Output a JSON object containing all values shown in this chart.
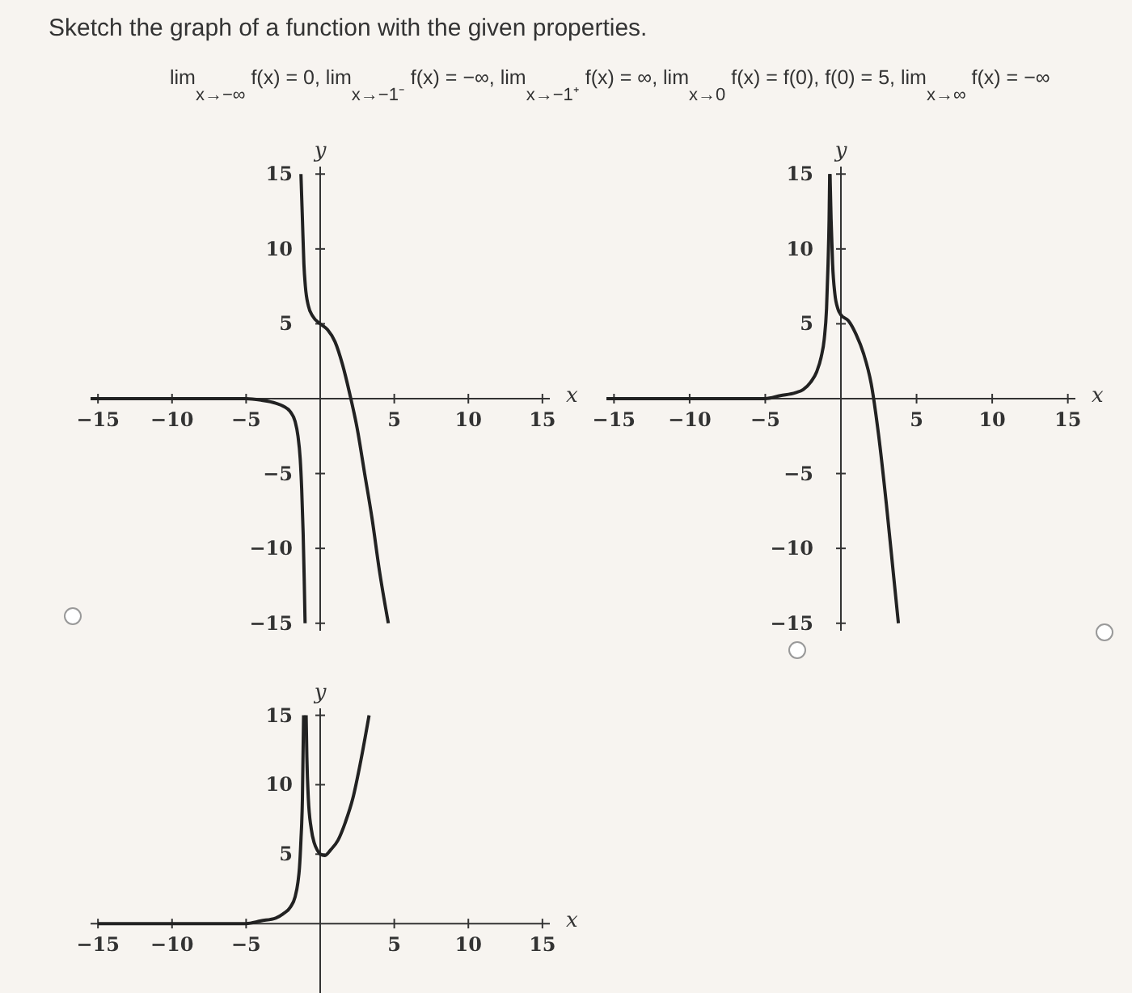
{
  "chart_data": [
    {
      "type": "line",
      "title": "Sketch the graph of a function with the given properties.",
      "annotations": [
        "lim$_{x→−∞}$ f(x) = 0,",
        "lim$_{x→−1⁻}$ f(x) = −∞,",
        "lim$_{x→−1⁺}$ f(x) = ∞,",
        "lim$_{x→0}$ f(x) = f(0), f(0) = 5,",
        "lim$_{x→∞}$ f(x) = −∞"
      ],
      "xlabel": "x",
      "ylabel": "y",
      "xlim": [
        -15.5,
        15.5
      ],
      "ylim": [
        -15.5,
        15.5
      ],
      "xticks": [
        -15,
        -10,
        -5,
        5,
        10,
        15
      ],
      "yticks": [
        -15,
        -10,
        -5,
        5,
        10,
        15
      ],
      "series": [
        {
          "color": "#222222",
          "x": [
            -15.5,
            -8,
            -5,
            -4,
            -3,
            -2.5,
            -2,
            -1.7,
            -1.5,
            -1.35,
            -1.25,
            -1.15,
            -1.08,
            -1.02
          ],
          "values": [
            0,
            0,
            0,
            -0.1,
            -0.3,
            -0.5,
            -0.9,
            -1.5,
            -2.5,
            -4,
            -6,
            -9,
            -12,
            -15
          ]
        },
        {
          "color": "#222222",
          "x": [
            -1.3,
            -1.2,
            -1.1,
            -1,
            -0.8,
            -0.5,
            0,
            0.5,
            1,
            1.5,
            2,
            2.5,
            3,
            3.5,
            4,
            4.6
          ],
          "values": [
            15,
            12,
            9,
            7.5,
            6.2,
            5.5,
            5,
            4.6,
            3.8,
            2.3,
            0.3,
            -2,
            -5,
            -8,
            -11.5,
            -15
          ]
        }
      ]
    },
    {
      "type": "line",
      "xlabel": "x",
      "ylabel": "y",
      "xlim": [
        -15.5,
        15.5
      ],
      "ylim": [
        -15.5,
        15.5
      ],
      "xticks": [
        -15,
        -10,
        -5,
        5,
        10,
        15
      ],
      "yticks": [
        -15,
        -10,
        -5,
        5,
        10,
        15
      ],
      "series": [
        {
          "color": "#222222",
          "x": [
            -15.5,
            -8,
            -5,
            -4,
            -3,
            -2.5,
            -2,
            -1.6,
            -1.3,
            -1.1,
            -0.95,
            -0.85,
            -0.78,
            -0.74
          ],
          "values": [
            0,
            0,
            0,
            0.2,
            0.4,
            0.6,
            1.1,
            1.8,
            2.8,
            4,
            6,
            9,
            12,
            15
          ]
        },
        {
          "color": "#222222",
          "x": [
            -0.72,
            -0.65,
            -0.55,
            -0.4,
            -0.2,
            0,
            0.5,
            1,
            1.5,
            2,
            2.5,
            3,
            3.5,
            3.8
          ],
          "values": [
            15,
            12,
            9,
            7,
            6,
            5.6,
            5.2,
            4.3,
            3,
            1,
            -2.5,
            -7,
            -12,
            -15
          ]
        }
      ]
    },
    {
      "type": "line",
      "xlabel": "x",
      "ylabel": "y",
      "xlim": [
        -15.5,
        15.5
      ],
      "ylim": [
        -5,
        15.5
      ],
      "xticks": [
        -15,
        -10,
        -5,
        5,
        10,
        15
      ],
      "yticks": [
        5,
        10,
        15
      ],
      "series": [
        {
          "color": "#222222",
          "x": [
            -15,
            -8,
            -5,
            -4,
            -3,
            -2.5,
            -2,
            -1.7,
            -1.5,
            -1.4,
            -1.3,
            -1.2,
            -1.12
          ],
          "values": [
            0,
            0,
            0,
            0.2,
            0.4,
            0.7,
            1.2,
            1.9,
            3,
            4,
            6,
            9,
            15
          ]
        },
        {
          "color": "#222222",
          "x": [
            -0.95,
            -0.9,
            -0.8,
            -0.6,
            -0.4,
            -0.2,
            0,
            0.3,
            0.7,
            1.2,
            1.7,
            2.2,
            2.7,
            3.3
          ],
          "values": [
            15,
            12,
            9,
            6.8,
            5.8,
            5.3,
            5,
            4.9,
            5.3,
            6,
            7.3,
            9,
            11.5,
            15
          ]
        }
      ]
    }
  ]
}
